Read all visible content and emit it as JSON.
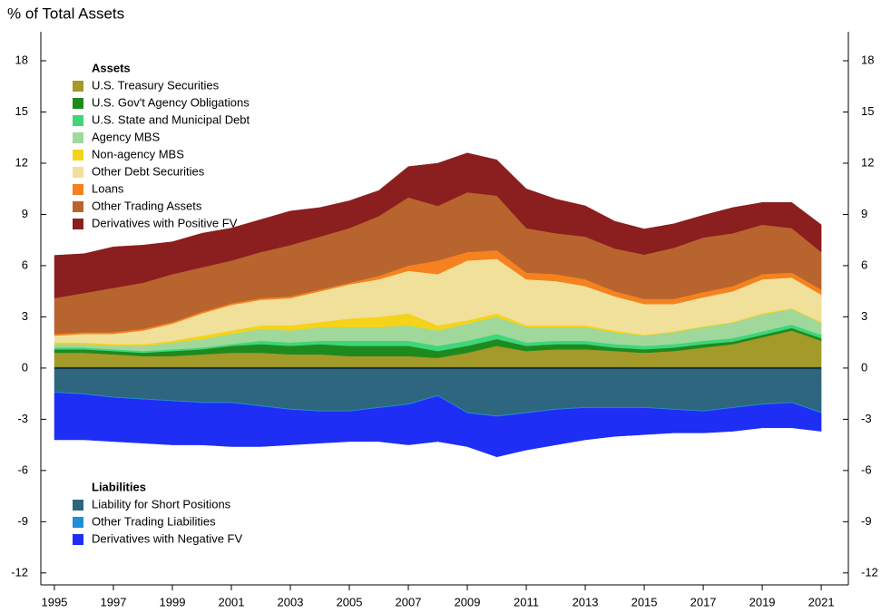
{
  "chart_data": {
    "type": "stacked_area",
    "title": "% of Total Assets",
    "x": [
      1995,
      1996,
      1997,
      1998,
      1999,
      2000,
      2001,
      2002,
      2003,
      2004,
      2005,
      2006,
      2007,
      2008,
      2009,
      2010,
      2011,
      2012,
      2013,
      2014,
      2015,
      2016,
      2017,
      2018,
      2019,
      2020,
      2021
    ],
    "xlim": [
      1994.54,
      2021.92
    ],
    "xticks": [
      1995,
      1997,
      1999,
      2001,
      2003,
      2005,
      2007,
      2009,
      2011,
      2013,
      2015,
      2017,
      2019,
      2021
    ],
    "ylim": [
      -12.7,
      19.7
    ],
    "yticks": [
      -12,
      -9,
      -6,
      -3,
      0,
      3,
      6,
      9,
      12,
      15,
      18
    ],
    "series_groups": [
      {
        "name": "Assets",
        "series": [
          {
            "name": "U.S. Treasury Securities",
            "color": "#a39a2a",
            "values": [
              0.9,
              0.9,
              0.8,
              0.7,
              0.7,
              0.8,
              0.9,
              0.9,
              0.8,
              0.8,
              0.7,
              0.7,
              0.7,
              0.6,
              0.9,
              1.3,
              1.0,
              1.1,
              1.1,
              1.0,
              0.9,
              1.0,
              1.2,
              1.4,
              1.8,
              2.2,
              1.6
            ]
          },
          {
            "name": "U.S. Gov't Agency Obligations",
            "color": "#1e8a1e",
            "values": [
              0.2,
              0.2,
              0.2,
              0.2,
              0.3,
              0.3,
              0.4,
              0.5,
              0.5,
              0.6,
              0.6,
              0.6,
              0.6,
              0.4,
              0.4,
              0.4,
              0.3,
              0.3,
              0.3,
              0.2,
              0.2,
              0.2,
              0.2,
              0.15,
              0.15,
              0.15,
              0.15
            ]
          },
          {
            "name": "U.S. State and Municipal Debt",
            "color": "#3ed67a",
            "values": [
              0.1,
              0.1,
              0.1,
              0.1,
              0.1,
              0.1,
              0.1,
              0.2,
              0.2,
              0.2,
              0.3,
              0.3,
              0.3,
              0.3,
              0.3,
              0.3,
              0.2,
              0.2,
              0.2,
              0.2,
              0.2,
              0.2,
              0.2,
              0.2,
              0.2,
              0.2,
              0.2
            ]
          },
          {
            "name": "Agency MBS",
            "color": "#9fd89a",
            "values": [
              0.2,
              0.2,
              0.2,
              0.3,
              0.4,
              0.5,
              0.6,
              0.7,
              0.7,
              0.8,
              0.8,
              0.8,
              0.9,
              0.9,
              1.0,
              1.0,
              0.9,
              0.8,
              0.8,
              0.7,
              0.6,
              0.7,
              0.8,
              0.9,
              1.0,
              0.9,
              0.7
            ]
          },
          {
            "name": "Non-agency MBS",
            "color": "#f5d31a",
            "values": [
              0.1,
              0.1,
              0.1,
              0.1,
              0.1,
              0.2,
              0.2,
              0.2,
              0.3,
              0.3,
              0.5,
              0.6,
              0.7,
              0.3,
              0.2,
              0.2,
              0.1,
              0.1,
              0.1,
              0.1,
              0.05,
              0.05,
              0.05,
              0.05,
              0.05,
              0.05,
              0.05
            ]
          },
          {
            "name": "Other Debt Securities",
            "color": "#f0e09a",
            "values": [
              0.4,
              0.5,
              0.6,
              0.8,
              1.0,
              1.3,
              1.5,
              1.5,
              1.6,
              1.8,
              2.0,
              2.2,
              2.5,
              3.0,
              3.5,
              3.2,
              2.7,
              2.6,
              2.3,
              2.0,
              1.8,
              1.6,
              1.7,
              1.8,
              2.0,
              1.8,
              1.6
            ]
          },
          {
            "name": "Loans",
            "color": "#f5821e",
            "values": [
              0.1,
              0.1,
              0.1,
              0.1,
              0.1,
              0.1,
              0.1,
              0.1,
              0.1,
              0.1,
              0.1,
              0.2,
              0.3,
              0.8,
              0.5,
              0.5,
              0.4,
              0.4,
              0.4,
              0.3,
              0.3,
              0.3,
              0.3,
              0.3,
              0.3,
              0.3,
              0.3
            ]
          },
          {
            "name": "Other Trading Assets",
            "color": "#b8642e",
            "values": [
              2.1,
              2.3,
              2.6,
              2.7,
              2.8,
              2.6,
              2.5,
              2.7,
              3.0,
              3.1,
              3.2,
              3.5,
              4.0,
              3.2,
              3.5,
              3.2,
              2.6,
              2.4,
              2.5,
              2.5,
              2.6,
              3.0,
              3.2,
              3.1,
              2.9,
              2.6,
              2.2
            ]
          },
          {
            "name": "Derivatives with Positive FV",
            "color": "#8b1e1e",
            "values": [
              2.5,
              2.3,
              2.4,
              2.2,
              1.9,
              2.0,
              1.9,
              1.9,
              2.0,
              1.7,
              1.6,
              1.5,
              1.8,
              2.5,
              2.3,
              2.1,
              2.3,
              2.0,
              1.8,
              1.6,
              1.5,
              1.4,
              1.3,
              1.5,
              1.3,
              1.5,
              1.6
            ]
          }
        ]
      },
      {
        "name": "Liabilities",
        "series": [
          {
            "name": "Liability for Short Positions",
            "color": "#2e6680",
            "values": [
              -1.4,
              -1.5,
              -1.7,
              -1.8,
              -1.9,
              -2.0,
              -2.0,
              -2.2,
              -2.4,
              -2.5,
              -2.5,
              -2.3,
              -2.1,
              -1.6,
              -2.6,
              -2.8,
              -2.6,
              -2.4,
              -2.3,
              -2.3,
              -2.3,
              -2.4,
              -2.5,
              -2.3,
              -2.1,
              -2.0,
              -2.6
            ]
          },
          {
            "name": "Other Trading Liabilities",
            "color": "#1e90d8",
            "values": [
              -0.05,
              -0.05,
              -0.05,
              -0.05,
              -0.05,
              -0.05,
              -0.05,
              -0.05,
              -0.05,
              -0.05,
              -0.05,
              -0.05,
              -0.05,
              -0.05,
              -0.05,
              -0.05,
              -0.05,
              -0.05,
              -0.05,
              -0.05,
              -0.05,
              -0.05,
              -0.05,
              -0.05,
              -0.05,
              -0.05,
              -0.05
            ]
          },
          {
            "name": "Derivatives with Negative FV",
            "color": "#1e2ef5",
            "values": [
              -2.75,
              -2.65,
              -2.55,
              -2.55,
              -2.55,
              -2.45,
              -2.55,
              -2.35,
              -2.05,
              -1.85,
              -1.75,
              -1.95,
              -2.35,
              -2.65,
              -1.95,
              -2.35,
              -2.15,
              -2.05,
              -1.85,
              -1.65,
              -1.55,
              -1.35,
              -1.25,
              -1.35,
              -1.35,
              -1.45,
              -1.05
            ]
          }
        ]
      }
    ]
  }
}
